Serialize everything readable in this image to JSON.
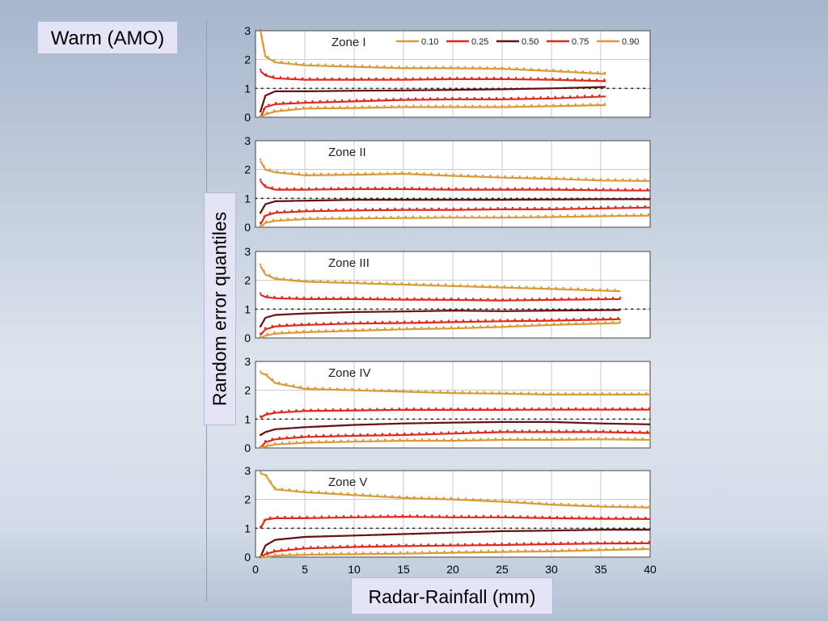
{
  "slide": {
    "title": "Warm (AMO)",
    "ylabel": "Random error quantiles",
    "xlabel": "Radar-Rainfall (mm)"
  },
  "chart_data": {
    "type": "line",
    "x_ticks": [
      0,
      5,
      10,
      15,
      20,
      25,
      30,
      35,
      40
    ],
    "y_ticks": [
      0,
      1,
      2,
      3
    ],
    "xlim": [
      0,
      40
    ],
    "ylim": [
      0,
      3
    ],
    "grid": true,
    "legend": {
      "placement": "top-right of first panel",
      "entries": [
        "0.10",
        "0.25",
        "0.50",
        "0.75",
        "0.90"
      ]
    },
    "series_colors": {
      "0.10": "#d99a3a",
      "0.25": "#dd2b20",
      "0.50": "#6b1012",
      "0.75": "#dd2b20",
      "0.90": "#d99a3a"
    },
    "panels": [
      {
        "title": "Zone I",
        "xmax": 35.5,
        "series": [
          {
            "name": "0.90",
            "x": [
              0.5,
              1,
              2,
              5,
              10,
              15,
              20,
              25,
              30,
              35.5
            ],
            "values": [
              3.0,
              2.1,
              1.9,
              1.8,
              1.75,
              1.7,
              1.7,
              1.68,
              1.6,
              1.5
            ]
          },
          {
            "name": "0.75",
            "x": [
              0.5,
              1,
              2,
              5,
              10,
              15,
              20,
              25,
              30,
              35.5
            ],
            "values": [
              1.6,
              1.45,
              1.35,
              1.3,
              1.3,
              1.3,
              1.32,
              1.32,
              1.3,
              1.25
            ]
          },
          {
            "name": "0.50",
            "x": [
              0.5,
              1,
              2,
              5,
              10,
              15,
              20,
              25,
              30,
              35.5
            ],
            "values": [
              0.2,
              0.75,
              0.9,
              0.9,
              0.92,
              0.93,
              0.95,
              0.97,
              1.0,
              1.05
            ]
          },
          {
            "name": "0.25",
            "x": [
              0.5,
              1,
              2,
              5,
              10,
              15,
              20,
              25,
              30,
              35.5
            ],
            "values": [
              0.0,
              0.35,
              0.45,
              0.5,
              0.55,
              0.6,
              0.62,
              0.62,
              0.65,
              0.72
            ]
          },
          {
            "name": "0.10",
            "x": [
              0.5,
              1,
              2,
              5,
              10,
              15,
              20,
              25,
              30,
              35.5
            ],
            "values": [
              0.0,
              0.1,
              0.2,
              0.3,
              0.32,
              0.35,
              0.35,
              0.35,
              0.38,
              0.42
            ]
          }
        ]
      },
      {
        "title": "Zone II",
        "xmax": 40,
        "series": [
          {
            "name": "0.90",
            "x": [
              0.5,
              1,
              2,
              5,
              10,
              15,
              20,
              25,
              30,
              35,
              40
            ],
            "values": [
              2.3,
              2.0,
              1.9,
              1.8,
              1.82,
              1.85,
              1.78,
              1.72,
              1.68,
              1.62,
              1.6
            ]
          },
          {
            "name": "0.75",
            "x": [
              0.5,
              1,
              2,
              5,
              10,
              15,
              20,
              25,
              30,
              35,
              40
            ],
            "values": [
              1.6,
              1.4,
              1.3,
              1.3,
              1.32,
              1.32,
              1.3,
              1.3,
              1.3,
              1.28,
              1.27
            ]
          },
          {
            "name": "0.50",
            "x": [
              0.5,
              1,
              2,
              5,
              10,
              15,
              20,
              25,
              30,
              35,
              40
            ],
            "values": [
              0.5,
              0.8,
              0.9,
              0.92,
              0.95,
              0.95,
              0.95,
              0.95,
              0.96,
              0.97,
              0.97
            ]
          },
          {
            "name": "0.25",
            "x": [
              0.5,
              1,
              2,
              5,
              10,
              15,
              20,
              25,
              30,
              35,
              40
            ],
            "values": [
              0.1,
              0.4,
              0.5,
              0.55,
              0.58,
              0.6,
              0.6,
              0.62,
              0.62,
              0.65,
              0.68
            ]
          },
          {
            "name": "0.10",
            "x": [
              0.5,
              1,
              2,
              5,
              10,
              15,
              20,
              25,
              30,
              35,
              40
            ],
            "values": [
              0.0,
              0.15,
              0.22,
              0.28,
              0.3,
              0.32,
              0.33,
              0.33,
              0.35,
              0.38,
              0.4
            ]
          }
        ]
      },
      {
        "title": "Zone III",
        "xmax": 37,
        "series": [
          {
            "name": "0.90",
            "x": [
              0.5,
              1,
              2,
              5,
              10,
              15,
              20,
              25,
              30,
              37
            ],
            "values": [
              2.5,
              2.2,
              2.05,
              1.95,
              1.9,
              1.85,
              1.8,
              1.75,
              1.7,
              1.62
            ]
          },
          {
            "name": "0.75",
            "x": [
              0.5,
              1,
              2,
              5,
              10,
              15,
              20,
              25,
              30,
              37
            ],
            "values": [
              1.5,
              1.42,
              1.38,
              1.35,
              1.35,
              1.33,
              1.32,
              1.3,
              1.32,
              1.35
            ]
          },
          {
            "name": "0.50",
            "x": [
              0.5,
              1,
              2,
              5,
              10,
              15,
              20,
              25,
              30,
              37
            ],
            "values": [
              0.4,
              0.7,
              0.8,
              0.85,
              0.9,
              0.92,
              0.95,
              0.93,
              0.95,
              0.97
            ]
          },
          {
            "name": "0.25",
            "x": [
              0.5,
              1,
              2,
              5,
              10,
              15,
              20,
              25,
              30,
              37
            ],
            "values": [
              0.1,
              0.3,
              0.4,
              0.45,
              0.5,
              0.52,
              0.55,
              0.58,
              0.6,
              0.65
            ]
          },
          {
            "name": "0.10",
            "x": [
              0.5,
              1,
              2,
              5,
              10,
              15,
              20,
              25,
              30,
              37
            ],
            "values": [
              0.0,
              0.08,
              0.15,
              0.2,
              0.25,
              0.3,
              0.33,
              0.38,
              0.45,
              0.52
            ]
          }
        ]
      },
      {
        "title": "Zone IV",
        "xmax": 40,
        "series": [
          {
            "name": "0.90",
            "x": [
              0.5,
              1,
              2,
              5,
              10,
              15,
              20,
              25,
              30,
              35,
              40
            ],
            "values": [
              2.6,
              2.55,
              2.25,
              2.05,
              2.0,
              1.95,
              1.9,
              1.88,
              1.85,
              1.85,
              1.85
            ]
          },
          {
            "name": "0.75",
            "x": [
              0.5,
              1,
              2,
              5,
              10,
              15,
              20,
              25,
              30,
              35,
              40
            ],
            "values": [
              1.05,
              1.15,
              1.22,
              1.28,
              1.3,
              1.32,
              1.32,
              1.32,
              1.33,
              1.33,
              1.33
            ]
          },
          {
            "name": "0.50",
            "x": [
              0.5,
              1,
              2,
              5,
              10,
              15,
              20,
              25,
              30,
              35,
              40
            ],
            "values": [
              0.45,
              0.55,
              0.65,
              0.72,
              0.8,
              0.85,
              0.88,
              0.9,
              0.9,
              0.85,
              0.82
            ]
          },
          {
            "name": "0.25",
            "x": [
              0.5,
              1,
              2,
              5,
              10,
              15,
              20,
              25,
              30,
              35,
              40
            ],
            "values": [
              0.0,
              0.2,
              0.3,
              0.38,
              0.42,
              0.45,
              0.5,
              0.55,
              0.55,
              0.55,
              0.52
            ]
          },
          {
            "name": "0.10",
            "x": [
              0.5,
              1,
              2,
              5,
              10,
              15,
              20,
              25,
              30,
              35,
              40
            ],
            "values": [
              0.0,
              0.05,
              0.12,
              0.18,
              0.22,
              0.25,
              0.25,
              0.28,
              0.28,
              0.3,
              0.28
            ]
          }
        ]
      },
      {
        "title": "Zone V",
        "xmax": 40,
        "series": [
          {
            "name": "0.90",
            "x": [
              0.5,
              1,
              2,
              5,
              10,
              15,
              20,
              25,
              30,
              35,
              40
            ],
            "values": [
              2.9,
              2.85,
              2.35,
              2.25,
              2.15,
              2.05,
              2.0,
              1.92,
              1.82,
              1.75,
              1.72
            ]
          },
          {
            "name": "0.75",
            "x": [
              0.5,
              1,
              2,
              5,
              10,
              15,
              20,
              25,
              30,
              35,
              40
            ],
            "values": [
              1.0,
              1.3,
              1.35,
              1.35,
              1.38,
              1.4,
              1.38,
              1.38,
              1.35,
              1.33,
              1.32
            ]
          },
          {
            "name": "0.50",
            "x": [
              0.5,
              1,
              2,
              5,
              10,
              15,
              20,
              25,
              30,
              35,
              40
            ],
            "values": [
              0.0,
              0.4,
              0.6,
              0.7,
              0.75,
              0.8,
              0.85,
              0.9,
              0.92,
              0.95,
              0.95
            ]
          },
          {
            "name": "0.25",
            "x": [
              0.5,
              1,
              2,
              5,
              10,
              15,
              20,
              25,
              30,
              35,
              40
            ],
            "values": [
              0.0,
              0.1,
              0.2,
              0.3,
              0.35,
              0.38,
              0.4,
              0.42,
              0.45,
              0.47,
              0.48
            ]
          },
          {
            "name": "0.10",
            "x": [
              0.5,
              1,
              2,
              5,
              10,
              15,
              20,
              25,
              30,
              35,
              40
            ],
            "values": [
              0.0,
              0.0,
              0.05,
              0.08,
              0.1,
              0.12,
              0.15,
              0.18,
              0.2,
              0.24,
              0.28
            ]
          }
        ]
      }
    ]
  }
}
